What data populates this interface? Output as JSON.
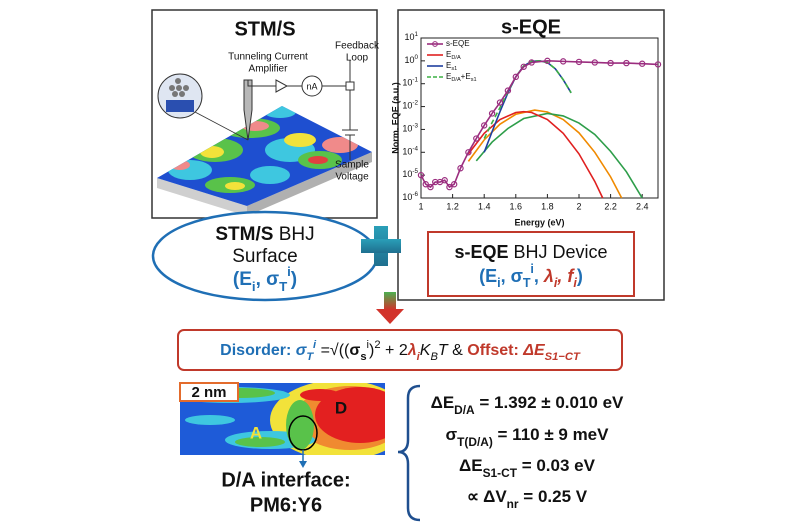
{
  "stm_panel": {
    "title": "STM/S",
    "amplifier_label": [
      "Tunneling Current",
      "Amplifier"
    ],
    "current_unit": "nA",
    "feedback_label": [
      "Feedback",
      "Loop"
    ],
    "voltage_label": [
      "Sample",
      "Voltage"
    ],
    "caption": [
      [
        {
          "b": "STM/S"
        },
        {
          "t": " BHJ"
        }
      ],
      [
        {
          "t": "Surface"
        }
      ],
      [
        {
          "cb": "("
        },
        {
          "cb": "E"
        },
        {
          "cb_sub": "i"
        },
        {
          "cb": ", σ"
        },
        {
          "cb_sub": "T"
        },
        {
          "cb_sup": "i"
        },
        {
          "cb": ")"
        }
      ]
    ]
  },
  "eqe_panel": {
    "title": "s-EQE",
    "caption": [
      [
        {
          "b": "s-EQE"
        },
        {
          "t": " BHJ Device"
        }
      ],
      [
        {
          "cb": "(E"
        },
        {
          "cb_sub": "i"
        },
        {
          "cb": ", σ"
        },
        {
          "cb_sub": "T"
        },
        {
          "cb_sup": "i"
        },
        {
          "cb": ", "
        },
        {
          "rbi": "λ"
        },
        {
          "rbi_sub": "i"
        },
        {
          "rbi": ", f"
        },
        {
          "rbi_sub": "i"
        },
        {
          "cb": ")"
        }
      ]
    ],
    "plot": {
      "xlabel": "Energy (eV)",
      "ylabel": "Norm. EQE (a.u.)",
      "xlim": [
        1,
        2.5
      ],
      "xticks": [
        1,
        1.2,
        1.4,
        1.6,
        1.8,
        2,
        2.2,
        2.4
      ],
      "ylim": [
        1e-06,
        10
      ],
      "log_y": true,
      "yticks": [
        {
          "value": 1e-06,
          "label": [
            {
              "t": "10"
            },
            {
              "t_sup": "-6"
            }
          ]
        },
        {
          "value": 1e-05,
          "label": [
            {
              "t": "10"
            },
            {
              "t_sup": "-5"
            }
          ]
        },
        {
          "value": 0.0001,
          "label": [
            {
              "t": "10"
            },
            {
              "t_sup": "-4"
            }
          ]
        },
        {
          "value": 0.001,
          "label": [
            {
              "t": "10"
            },
            {
              "t_sup": "-3"
            }
          ]
        },
        {
          "value": 0.01,
          "label": [
            {
              "t": "10"
            },
            {
              "t_sup": "-2"
            }
          ]
        },
        {
          "value": 0.1,
          "label": [
            {
              "t": "10"
            },
            {
              "t_sup": "-1"
            }
          ]
        },
        {
          "value": 1,
          "label": [
            {
              "t": "10"
            },
            {
              "t_sup": "0"
            }
          ]
        },
        {
          "value": 10,
          "label": [
            {
              "t": "10"
            },
            {
              "t_sup": "1"
            }
          ]
        }
      ],
      "series": [
        {
          "name": [
            {
              "t": "s-EQE"
            }
          ],
          "color": "#9b2d7f",
          "markers": true,
          "x": [
            1.0,
            1.03,
            1.06,
            1.09,
            1.12,
            1.15,
            1.18,
            1.21,
            1.25,
            1.3,
            1.35,
            1.4,
            1.45,
            1.5,
            1.55,
            1.6,
            1.65,
            1.7,
            1.8,
            1.9,
            2.0,
            2.1,
            2.2,
            2.3,
            2.4,
            2.5
          ],
          "values": [
            1e-05,
            4e-06,
            3e-06,
            5e-06,
            5e-06,
            6e-06,
            3e-06,
            4e-06,
            2e-05,
            0.0001,
            0.0004,
            0.0015,
            0.005,
            0.015,
            0.05,
            0.2,
            0.55,
            0.85,
            1,
            0.95,
            0.9,
            0.85,
            0.8,
            0.8,
            0.75,
            0.7
          ]
        },
        {
          "name": [
            {
              "t": "E"
            },
            {
              "t_sub": "D/A"
            }
          ],
          "color": "#e02020",
          "x": [
            1.3,
            1.4,
            1.5,
            1.6,
            1.65,
            1.7,
            1.8,
            1.9,
            2.0,
            2.1,
            2.15
          ],
          "values": [
            8.5e-05,
            0.00068,
            0.0027,
            0.0055,
            0.006,
            0.0055,
            0.0027,
            0.00068,
            8.5e-05,
            5.3e-06,
            1e-06
          ]
        },
        {
          "name": [
            {
              "t": "E"
            },
            {
              "t_sub": "s1"
            }
          ],
          "color": "#1f3f9f",
          "x": [
            1.4,
            1.45,
            1.5,
            1.55,
            1.6,
            1.65,
            1.7,
            1.75,
            1.8,
            1.85,
            1.9,
            1.95
          ],
          "values": [
            0.0001,
            0.0008,
            0.006,
            0.04,
            0.2,
            0.6,
            0.95,
            1,
            0.85,
            0.45,
            0.15,
            0.04
          ]
        },
        {
          "name": [
            {
              "t": "E"
            },
            {
              "t_sub": "D/A"
            },
            {
              "t": "+E"
            },
            {
              "t_sub": "s1"
            }
          ],
          "color": "#3cb043",
          "dashed": true,
          "x": [
            1.4,
            1.45,
            1.5,
            1.55,
            1.6,
            1.65,
            1.7,
            1.75,
            1.8,
            1.85,
            1.9,
            1.95
          ],
          "values": [
            0.0004,
            0.002,
            0.009,
            0.045,
            0.2,
            0.6,
            0.95,
            1,
            0.85,
            0.45,
            0.15,
            0.04
          ]
        },
        {
          "color": "#f08a00",
          "x": [
            1.3,
            1.4,
            1.5,
            1.6,
            1.72,
            1.8,
            1.9,
            2.0,
            2.1,
            2.2,
            2.27
          ],
          "values": [
            4e-05,
            0.00035,
            0.0017,
            0.0046,
            0.007,
            0.0058,
            0.0027,
            0.00071,
            0.0001,
            8.4e-06,
            1e-06
          ]
        },
        {
          "color": "#2e9e4a",
          "x": [
            1.35,
            1.45,
            1.55,
            1.65,
            1.8,
            1.9,
            2.0,
            2.1,
            2.2,
            2.3,
            2.4
          ],
          "values": [
            4.2e-05,
            0.00028,
            0.0011,
            0.003,
            0.005,
            0.0039,
            0.0019,
            0.0006,
            0.00011,
            1.4e-05,
            1e-06
          ]
        }
      ]
    }
  },
  "formula": [
    {
      "cb": "Disorder:  "
    },
    {
      "cbi": "σ"
    },
    {
      "cbi_sub": "T"
    },
    {
      "cbi_sup": "i"
    },
    {
      "t": " ="
    },
    {
      "t": "√"
    },
    {
      "t": "(("
    },
    {
      "b": "σ"
    },
    {
      "b_sub": "s"
    },
    {
      "t_sup": "i"
    },
    {
      "t": ")"
    },
    {
      "t_sup": "2"
    },
    {
      "t": "  +  2"
    },
    {
      "rbi": "λ"
    },
    {
      "rbi_sub": "i"
    },
    {
      "i": "K"
    },
    {
      "i_sub": "B"
    },
    {
      "i": "T"
    },
    {
      "t": " & "
    },
    {
      "rb": "Offset: "
    },
    {
      "rbi": "ΔE"
    },
    {
      "rbi_sub": "S1−CT"
    }
  ],
  "stm_image": {
    "scale": "2 nm",
    "acceptor": "A",
    "donor": "D",
    "interface_label": [
      "D/A interface:",
      "PM6:Y6"
    ]
  },
  "results": [
    [
      {
        "b": "ΔE"
      },
      {
        "b_sub": "D/A"
      },
      {
        "b": " = 1.392 ± 0.010 eV"
      }
    ],
    [
      {
        "b": "σ"
      },
      {
        "b_sub": "T(D/A)"
      },
      {
        "b": " = 110 ± 9 meV"
      }
    ],
    [
      {
        "b": "ΔE"
      },
      {
        "b_sub": "S1-CT"
      },
      {
        "b": " = 0.03 eV"
      }
    ],
    [
      {
        "b": "∝ ΔV"
      },
      {
        "b_sub": "nr"
      },
      {
        "b": " = 0.25 V"
      }
    ]
  ]
}
